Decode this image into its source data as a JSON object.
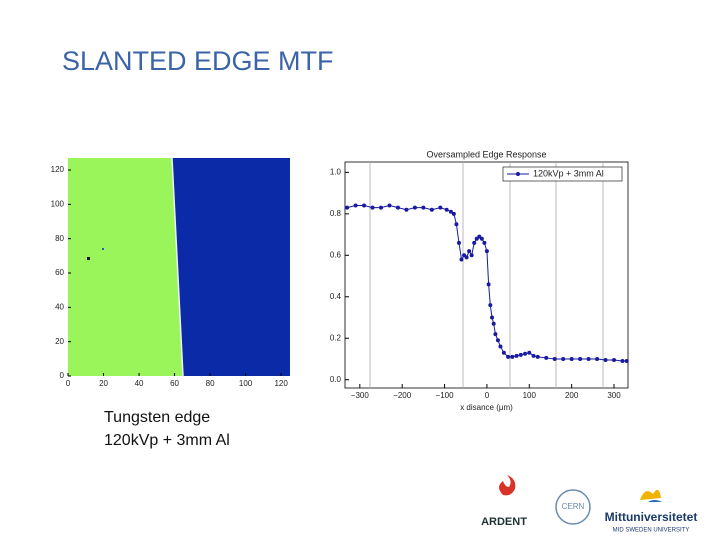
{
  "title": "SLANTED EDGE MTF",
  "caption": [
    "Tungsten edge",
    "120kVp + 3mm Al"
  ],
  "logos": [
    "ARDENT",
    "CERN",
    "Mittuniversitetet",
    "MID SWEDEN UNIVERSITY"
  ],
  "chart_data": [
    {
      "type": "image",
      "xlim": [
        0,
        125
      ],
      "ylim": [
        0,
        127
      ],
      "xticks": [
        0,
        20,
        40,
        60,
        80,
        100,
        120
      ],
      "yticks": [
        0,
        20,
        40,
        60,
        80,
        100,
        120
      ]
    },
    {
      "type": "line",
      "title": "Oversampled Edge Response",
      "x_label": "x disance (μm)",
      "xlim": [
        -335,
        333
      ],
      "ylim": [
        -0.04,
        1.05
      ],
      "xticks": [
        {
          "value": -300,
          "label": "−300"
        },
        {
          "value": -200,
          "label": "−200"
        },
        {
          "value": -100,
          "label": "−100"
        },
        0,
        100,
        200,
        300
      ],
      "yticks": [
        {
          "value": 0,
          "label": "0.0"
        },
        0.2,
        0.4,
        0.6,
        0.8,
        {
          "value": 1,
          "label": "1.0"
        }
      ],
      "legend": "upper right",
      "series": [
        {
          "name": "120kVp + 3mm Al",
          "color": "#1a1aa0",
          "x": [
            -330,
            -310,
            -290,
            -270,
            -250,
            -230,
            -210,
            -190,
            -170,
            -150,
            -130,
            -110,
            -95,
            -85,
            -78,
            -72,
            -66,
            -60,
            -54,
            -48,
            -42,
            -36,
            -30,
            -24,
            -18,
            -12,
            -6,
            0,
            4,
            8,
            12,
            16,
            20,
            26,
            32,
            40,
            50,
            60,
            70,
            80,
            90,
            100,
            110,
            120,
            140,
            160,
            180,
            200,
            220,
            240,
            260,
            280,
            300,
            320,
            330
          ],
          "values": [
            0.83,
            0.84,
            0.84,
            0.83,
            0.83,
            0.84,
            0.83,
            0.82,
            0.83,
            0.83,
            0.82,
            0.83,
            0.82,
            0.81,
            0.8,
            0.75,
            0.66,
            0.58,
            0.6,
            0.59,
            0.62,
            0.6,
            0.66,
            0.68,
            0.69,
            0.68,
            0.66,
            0.62,
            0.46,
            0.36,
            0.3,
            0.27,
            0.22,
            0.19,
            0.16,
            0.13,
            0.11,
            0.11,
            0.115,
            0.12,
            0.125,
            0.13,
            0.115,
            0.11,
            0.105,
            0.1,
            0.1,
            0.1,
            0.1,
            0.1,
            0.1,
            0.095,
            0.095,
            0.09,
            0.09
          ]
        }
      ]
    }
  ]
}
